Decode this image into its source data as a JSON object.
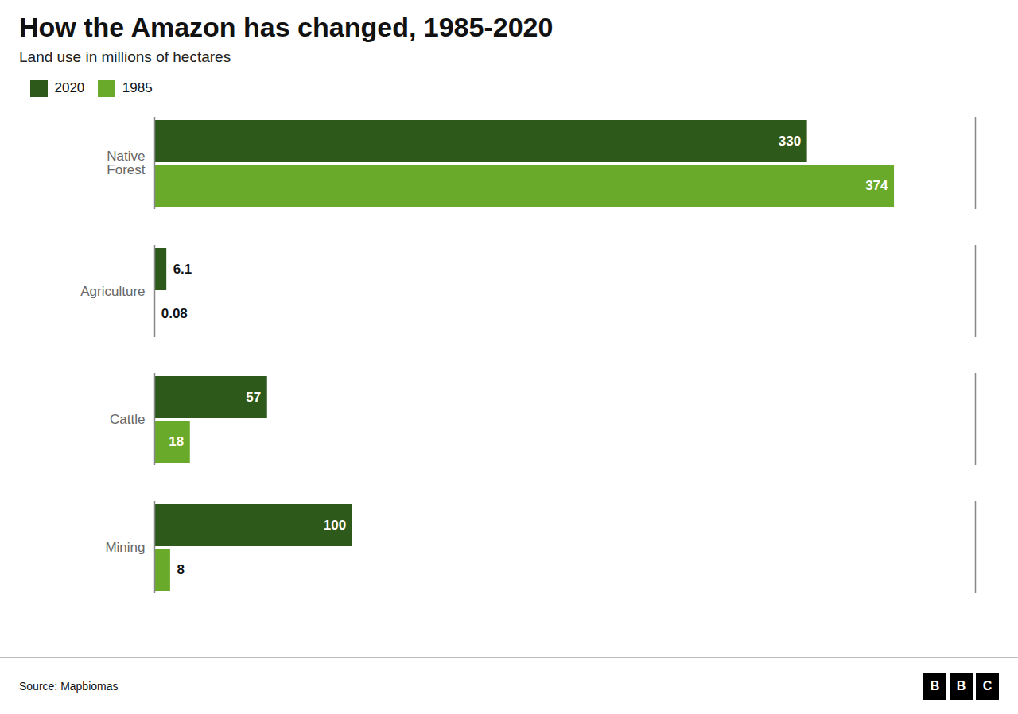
{
  "chart_data": {
    "type": "bar",
    "orientation": "horizontal",
    "title": "How the Amazon has changed, 1985-2020",
    "subtitle": "Land use in millions of hectares",
    "source": "Source: Mapbiomas",
    "logo": "BBC",
    "categories": [
      "Native\nForest",
      "Agriculture",
      "Cattle",
      "Mining"
    ],
    "series": [
      {
        "name": "2020",
        "color": "#2d5a1b",
        "values": [
          330,
          6.1,
          57,
          100
        ]
      },
      {
        "name": "1985",
        "color": "#6aaa2a",
        "values": [
          374,
          0.08,
          18,
          8
        ]
      }
    ],
    "xlim": [
      0,
      415
    ],
    "tick_labels": "y",
    "data_labels": true,
    "legend": "upper left",
    "grid": false
  }
}
